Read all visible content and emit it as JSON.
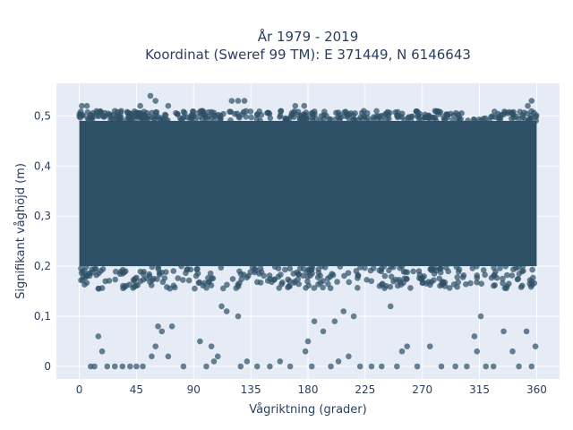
{
  "chart_data": {
    "type": "scatter",
    "title_line1": "År 1979 - 2019",
    "title_line2": "Koordinat (Sweref 99 TM): E 371449, N 6146643",
    "xlabel": "Vågriktning (grader)",
    "ylabel": "Signifikant våghöjd (m)",
    "xlim": [
      -18,
      378
    ],
    "ylim": [
      -0.025,
      0.565
    ],
    "xticks": [
      0,
      45,
      90,
      135,
      180,
      225,
      270,
      315,
      360
    ],
    "xtick_labels": [
      "0",
      "45",
      "90",
      "135",
      "180",
      "225",
      "270",
      "315",
      "360"
    ],
    "yticks": [
      0,
      0.1,
      0.2,
      0.3,
      0.4,
      0.5
    ],
    "ytick_labels": [
      "0",
      "0,1",
      "0,2",
      "0,3",
      "0,4",
      "0,5"
    ],
    "grid": true,
    "background_color": "#e5ecf6",
    "marker_color": "#2e5066",
    "dense_band": {
      "x_range": [
        0,
        360
      ],
      "y_range": [
        0.2,
        0.49
      ]
    },
    "outlier_points": [
      [
        9,
        0.0
      ],
      [
        12,
        0.0
      ],
      [
        15,
        0.06
      ],
      [
        18,
        0.03
      ],
      [
        22,
        0.0
      ],
      [
        28,
        0.0
      ],
      [
        34,
        0.0
      ],
      [
        40,
        0.0
      ],
      [
        45,
        0.0
      ],
      [
        50,
        0.0
      ],
      [
        57,
        0.02
      ],
      [
        60,
        0.04
      ],
      [
        62,
        0.08
      ],
      [
        65,
        0.07
      ],
      [
        70,
        0.02
      ],
      [
        73,
        0.08
      ],
      [
        82,
        0.0
      ],
      [
        95,
        0.05
      ],
      [
        100,
        0.0
      ],
      [
        104,
        0.04
      ],
      [
        106,
        0.01
      ],
      [
        109,
        0.02
      ],
      [
        112,
        0.12
      ],
      [
        116,
        0.11
      ],
      [
        125,
        0.1
      ],
      [
        127,
        0.0
      ],
      [
        132,
        0.01
      ],
      [
        140,
        0.0
      ],
      [
        150,
        0.0
      ],
      [
        158,
        0.01
      ],
      [
        166,
        0.0
      ],
      [
        178,
        0.03
      ],
      [
        180,
        0.05
      ],
      [
        183,
        0.0
      ],
      [
        185,
        0.09
      ],
      [
        192,
        0.07
      ],
      [
        198,
        0.0
      ],
      [
        201,
        0.09
      ],
      [
        204,
        0.01
      ],
      [
        208,
        0.11
      ],
      [
        212,
        0.02
      ],
      [
        216,
        0.1
      ],
      [
        221,
        0.0
      ],
      [
        230,
        0.0
      ],
      [
        238,
        0.0
      ],
      [
        245,
        0.12
      ],
      [
        250,
        0.0
      ],
      [
        254,
        0.03
      ],
      [
        258,
        0.04
      ],
      [
        266,
        0.0
      ],
      [
        276,
        0.04
      ],
      [
        285,
        0.0
      ],
      [
        296,
        0.0
      ],
      [
        305,
        0.0
      ],
      [
        311,
        0.06
      ],
      [
        313,
        0.03
      ],
      [
        316,
        0.1
      ],
      [
        320,
        0.0
      ],
      [
        326,
        0.0
      ],
      [
        334,
        0.07
      ],
      [
        341,
        0.03
      ],
      [
        346,
        0.0
      ],
      [
        352,
        0.07
      ],
      [
        356,
        0.0
      ],
      [
        359,
        0.04
      ]
    ],
    "extreme_high_points": [
      [
        2,
        0.52
      ],
      [
        6,
        0.52
      ],
      [
        14,
        0.5
      ],
      [
        28,
        0.51
      ],
      [
        33,
        0.51
      ],
      [
        48,
        0.52
      ],
      [
        56,
        0.54
      ],
      [
        60,
        0.53
      ],
      [
        70,
        0.52
      ],
      [
        97,
        0.51
      ],
      [
        120,
        0.53
      ],
      [
        125,
        0.53
      ],
      [
        130,
        0.53
      ],
      [
        170,
        0.52
      ],
      [
        177,
        0.52
      ],
      [
        224,
        0.51
      ],
      [
        280,
        0.51
      ],
      [
        356,
        0.53
      ],
      [
        353,
        0.52
      ]
    ]
  }
}
